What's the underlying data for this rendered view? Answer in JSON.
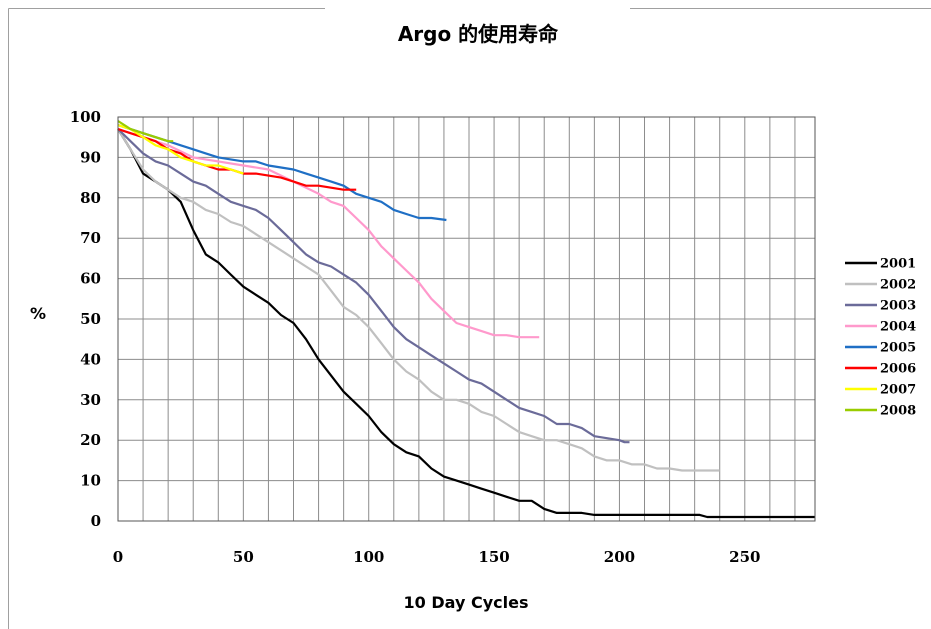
{
  "chart_data": {
    "type": "line",
    "title": "Argo 的使用寿命",
    "xlabel": "10 Day Cycles",
    "ylabel": "%",
    "xlim": [
      0,
      278
    ],
    "ylim": [
      0,
      100
    ],
    "x_ticks": [
      "0",
      "50",
      "100",
      "150",
      "200",
      "250"
    ],
    "y_ticks": [
      "0",
      "10",
      "20",
      "30",
      "40",
      "50",
      "60",
      "70",
      "80",
      "90",
      "100"
    ],
    "grid": true,
    "legend_position": "right",
    "series": [
      {
        "name": "2001",
        "color": "#000000",
        "points": [
          [
            0,
            97
          ],
          [
            5,
            92
          ],
          [
            10,
            86
          ],
          [
            15,
            84
          ],
          [
            20,
            82
          ],
          [
            25,
            79
          ],
          [
            30,
            72
          ],
          [
            35,
            66
          ],
          [
            40,
            64
          ],
          [
            45,
            61
          ],
          [
            50,
            58
          ],
          [
            55,
            56
          ],
          [
            60,
            54
          ],
          [
            65,
            51
          ],
          [
            70,
            49
          ],
          [
            75,
            45
          ],
          [
            80,
            40
          ],
          [
            85,
            36
          ],
          [
            90,
            32
          ],
          [
            95,
            29
          ],
          [
            100,
            26
          ],
          [
            105,
            22
          ],
          [
            110,
            19
          ],
          [
            115,
            17
          ],
          [
            120,
            16
          ],
          [
            125,
            13
          ],
          [
            130,
            11
          ],
          [
            135,
            10
          ],
          [
            140,
            9
          ],
          [
            145,
            8
          ],
          [
            150,
            7
          ],
          [
            155,
            6
          ],
          [
            160,
            5
          ],
          [
            165,
            5
          ],
          [
            170,
            3
          ],
          [
            175,
            2
          ],
          [
            180,
            2
          ],
          [
            185,
            2
          ],
          [
            190,
            1.5
          ],
          [
            200,
            1.5
          ],
          [
            210,
            1.5
          ],
          [
            220,
            1.5
          ],
          [
            232,
            1.5
          ],
          [
            235,
            1
          ],
          [
            250,
            1
          ],
          [
            265,
            1
          ],
          [
            278,
            1
          ]
        ]
      },
      {
        "name": "2002",
        "color": "#c0c0c0",
        "points": [
          [
            0,
            97
          ],
          [
            5,
            92
          ],
          [
            10,
            87
          ],
          [
            15,
            84
          ],
          [
            20,
            82
          ],
          [
            25,
            80
          ],
          [
            30,
            79
          ],
          [
            35,
            77
          ],
          [
            40,
            76
          ],
          [
            45,
            74
          ],
          [
            50,
            73
          ],
          [
            55,
            71
          ],
          [
            60,
            69
          ],
          [
            65,
            67
          ],
          [
            70,
            65
          ],
          [
            75,
            63
          ],
          [
            80,
            61
          ],
          [
            85,
            57
          ],
          [
            90,
            53
          ],
          [
            95,
            51
          ],
          [
            100,
            48
          ],
          [
            105,
            44
          ],
          [
            110,
            40
          ],
          [
            115,
            37
          ],
          [
            120,
            35
          ],
          [
            125,
            32
          ],
          [
            130,
            30
          ],
          [
            135,
            30
          ],
          [
            140,
            29
          ],
          [
            145,
            27
          ],
          [
            150,
            26
          ],
          [
            155,
            24
          ],
          [
            160,
            22
          ],
          [
            165,
            21
          ],
          [
            170,
            20
          ],
          [
            175,
            20
          ],
          [
            180,
            19
          ],
          [
            185,
            18
          ],
          [
            190,
            16
          ],
          [
            195,
            15
          ],
          [
            200,
            15
          ],
          [
            205,
            14
          ],
          [
            210,
            14
          ],
          [
            215,
            13
          ],
          [
            220,
            13
          ],
          [
            225,
            12.5
          ],
          [
            230,
            12.5
          ],
          [
            240,
            12.5
          ]
        ]
      },
      {
        "name": "2003",
        "color": "#6b6b99",
        "points": [
          [
            0,
            97
          ],
          [
            5,
            94
          ],
          [
            10,
            91
          ],
          [
            15,
            89
          ],
          [
            20,
            88
          ],
          [
            25,
            86
          ],
          [
            30,
            84
          ],
          [
            35,
            83
          ],
          [
            40,
            81
          ],
          [
            45,
            79
          ],
          [
            50,
            78
          ],
          [
            55,
            77
          ],
          [
            60,
            75
          ],
          [
            65,
            72
          ],
          [
            70,
            69
          ],
          [
            75,
            66
          ],
          [
            80,
            64
          ],
          [
            85,
            63
          ],
          [
            90,
            61
          ],
          [
            95,
            59
          ],
          [
            100,
            56
          ],
          [
            105,
            52
          ],
          [
            110,
            48
          ],
          [
            115,
            45
          ],
          [
            120,
            43
          ],
          [
            125,
            41
          ],
          [
            130,
            39
          ],
          [
            135,
            37
          ],
          [
            140,
            35
          ],
          [
            145,
            34
          ],
          [
            150,
            32
          ],
          [
            155,
            30
          ],
          [
            160,
            28
          ],
          [
            165,
            27
          ],
          [
            170,
            26
          ],
          [
            175,
            24
          ],
          [
            180,
            24
          ],
          [
            185,
            23
          ],
          [
            190,
            21
          ],
          [
            195,
            20.5
          ],
          [
            200,
            20
          ],
          [
            202,
            19.5
          ],
          [
            204,
            19.5
          ]
        ]
      },
      {
        "name": "2004",
        "color": "#ff99cc",
        "points": [
          [
            0,
            97
          ],
          [
            10,
            95
          ],
          [
            20,
            93
          ],
          [
            30,
            90
          ],
          [
            40,
            89
          ],
          [
            50,
            88
          ],
          [
            60,
            87
          ],
          [
            70,
            84
          ],
          [
            80,
            81
          ],
          [
            85,
            79
          ],
          [
            90,
            78
          ],
          [
            95,
            75
          ],
          [
            100,
            72
          ],
          [
            105,
            68
          ],
          [
            110,
            65
          ],
          [
            115,
            62
          ],
          [
            120,
            59
          ],
          [
            125,
            55
          ],
          [
            130,
            52
          ],
          [
            135,
            49
          ],
          [
            140,
            48
          ],
          [
            145,
            47
          ],
          [
            150,
            46
          ],
          [
            155,
            46
          ],
          [
            160,
            45.5
          ],
          [
            168,
            45.5
          ]
        ]
      },
      {
        "name": "2005",
        "color": "#1f6fc5",
        "points": [
          [
            0,
            98
          ],
          [
            5,
            97
          ],
          [
            10,
            96
          ],
          [
            15,
            95
          ],
          [
            20,
            94
          ],
          [
            25,
            93
          ],
          [
            30,
            92
          ],
          [
            35,
            91
          ],
          [
            40,
            90
          ],
          [
            45,
            89.5
          ],
          [
            50,
            89
          ],
          [
            55,
            89
          ],
          [
            60,
            88
          ],
          [
            65,
            87.5
          ],
          [
            70,
            87
          ],
          [
            75,
            86
          ],
          [
            80,
            85
          ],
          [
            85,
            84
          ],
          [
            90,
            83
          ],
          [
            95,
            81
          ],
          [
            100,
            80
          ],
          [
            105,
            79
          ],
          [
            110,
            77
          ],
          [
            115,
            76
          ],
          [
            120,
            75
          ],
          [
            125,
            75
          ],
          [
            131,
            74.5
          ]
        ]
      },
      {
        "name": "2006",
        "color": "#ff0000",
        "points": [
          [
            0,
            97
          ],
          [
            5,
            96
          ],
          [
            10,
            95
          ],
          [
            15,
            94
          ],
          [
            20,
            92
          ],
          [
            25,
            91
          ],
          [
            30,
            89
          ],
          [
            35,
            88
          ],
          [
            40,
            87
          ],
          [
            45,
            87
          ],
          [
            50,
            86
          ],
          [
            55,
            86
          ],
          [
            60,
            85.5
          ],
          [
            65,
            85
          ],
          [
            70,
            84
          ],
          [
            75,
            83
          ],
          [
            80,
            83
          ],
          [
            85,
            82.5
          ],
          [
            90,
            82
          ],
          [
            95,
            82
          ]
        ]
      },
      {
        "name": "2007",
        "color": "#ffff00",
        "points": [
          [
            0,
            98
          ],
          [
            5,
            97
          ],
          [
            10,
            95
          ],
          [
            15,
            93
          ],
          [
            20,
            92
          ],
          [
            25,
            90
          ],
          [
            30,
            89
          ],
          [
            35,
            88
          ],
          [
            40,
            88
          ],
          [
            45,
            87
          ],
          [
            50,
            86
          ]
        ]
      },
      {
        "name": "2008",
        "color": "#99cc00",
        "points": [
          [
            0,
            99
          ],
          [
            5,
            97
          ],
          [
            10,
            96
          ],
          [
            15,
            95
          ],
          [
            20,
            94
          ],
          [
            22,
            94
          ]
        ]
      }
    ]
  }
}
